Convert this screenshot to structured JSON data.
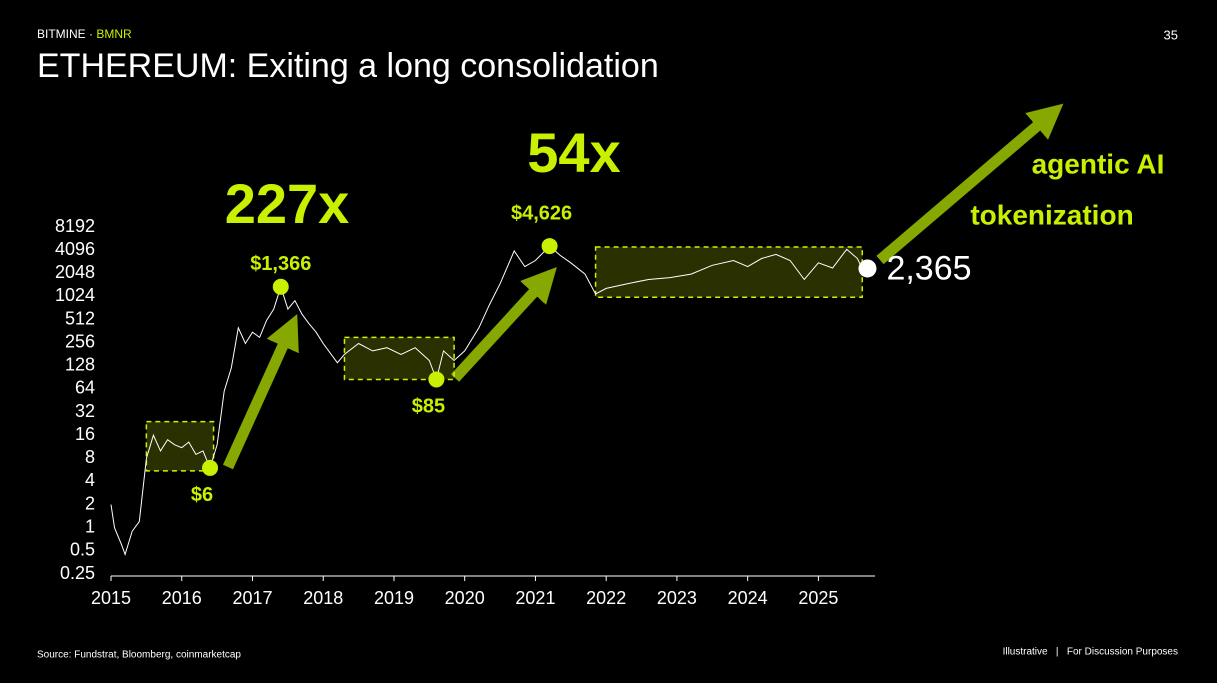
{
  "header": {
    "brand": "BITMINE",
    "separator": " · ",
    "ticker": "BMNR",
    "page_number": "35",
    "title": "ETHEREUM: Exiting a long consolidation"
  },
  "chart_data": {
    "type": "line",
    "color": "#ffffff",
    "log_scale": true,
    "x": [
      2015.0,
      2015.05,
      2015.15,
      2015.2,
      2015.3,
      2015.4,
      2015.5,
      2015.6,
      2015.7,
      2015.8,
      2015.9,
      2016.0,
      2016.1,
      2016.2,
      2016.3,
      2016.4,
      2016.5,
      2016.6,
      2016.7,
      2016.8,
      2016.9,
      2017.0,
      2017.1,
      2017.2,
      2017.3,
      2017.4,
      2017.5,
      2017.6,
      2017.7,
      2017.8,
      2017.9,
      2018.0,
      2018.2,
      2018.3,
      2018.5,
      2018.7,
      2018.9,
      2019.1,
      2019.3,
      2019.5,
      2019.6,
      2019.7,
      2019.85,
      2020.0,
      2020.2,
      2020.35,
      2020.5,
      2020.7,
      2020.85,
      2021.0,
      2021.2,
      2021.35,
      2021.5,
      2021.7,
      2021.85,
      2022.0,
      2022.3,
      2022.6,
      2022.9,
      2023.2,
      2023.5,
      2023.8,
      2024.0,
      2024.2,
      2024.4,
      2024.6,
      2024.8,
      2025.0,
      2025.2,
      2025.4,
      2025.55,
      2025.62
    ],
    "values": [
      2,
      1,
      0.6,
      0.45,
      0.9,
      1.2,
      8,
      16,
      10,
      14,
      12,
      11,
      13,
      9,
      10,
      6,
      12,
      60,
      120,
      400,
      250,
      350,
      300,
      500,
      700,
      1366,
      700,
      900,
      600,
      450,
      350,
      250,
      140,
      180,
      250,
      200,
      220,
      180,
      220,
      150,
      85,
      200,
      150,
      200,
      400,
      800,
      1500,
      4000,
      2500,
      3000,
      4626,
      3500,
      2800,
      2000,
      1100,
      1300,
      1500,
      1700,
      1800,
      2000,
      2600,
      3000,
      2500,
      3200,
      3600,
      3000,
      1700,
      2800,
      2400,
      4200,
      3200,
      2365
    ],
    "xlim": [
      2015,
      2025.8
    ],
    "xticks": [
      2015,
      2016,
      2017,
      2018,
      2019,
      2020,
      2021,
      2022,
      2023,
      2024,
      2025
    ],
    "ylim": [
      0.25,
      8192
    ],
    "yticks": [
      0.25,
      0.5,
      1,
      2,
      4,
      8,
      16,
      32,
      64,
      128,
      256,
      512,
      1024,
      2048,
      4096,
      8192
    ],
    "ranges": [
      {
        "x": [
          2015.5,
          2016.45
        ],
        "y": [
          5.5,
          24
        ]
      },
      {
        "x": [
          2018.3,
          2019.85
        ],
        "y": [
          85,
          300
        ]
      },
      {
        "x": [
          2021.85,
          2025.62
        ],
        "y": [
          1000,
          4500
        ]
      }
    ],
    "annotations": [
      {
        "label": "$6",
        "x": 2016.4,
        "value": 6
      },
      {
        "label": "$1,366",
        "x": 2017.4,
        "value": 1366
      },
      {
        "label": "$85",
        "x": 2019.6,
        "value": 85
      },
      {
        "label": "$4,626",
        "x": 2021.2,
        "value": 4626
      }
    ],
    "current": {
      "label": "2,365",
      "x": 2025.75,
      "value": 2365
    },
    "multiples": [
      "227x",
      "54x"
    ],
    "drivers": [
      "agentic AI",
      "tokenization"
    ]
  },
  "footer": {
    "source": "Source: Fundstrat, Bloomberg, coinmarketcap",
    "note": "Illustrative   |   For Discussion Purposes"
  }
}
